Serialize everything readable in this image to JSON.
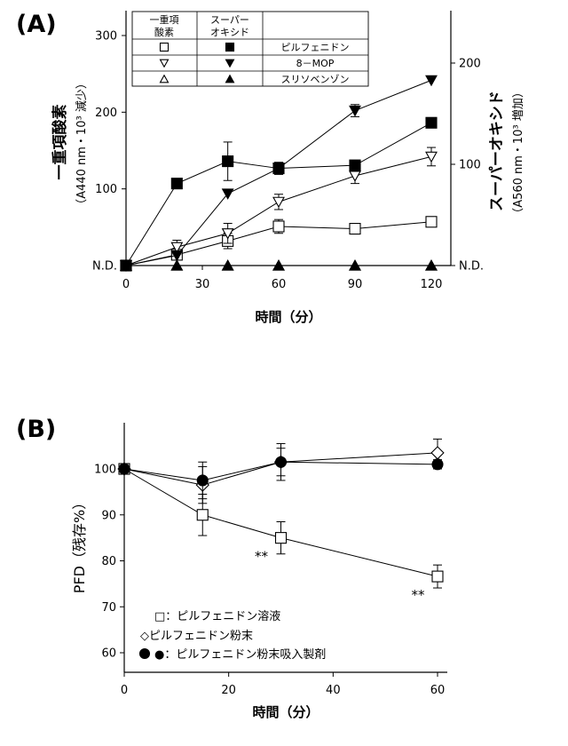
{
  "chart_data": [
    {
      "panel_label": "(A)",
      "type": "line",
      "xlabel": "時間（分）",
      "x_ticks": [
        "0",
        "30",
        "60",
        "90",
        "120"
      ],
      "x_range": [
        0,
        120
      ],
      "ylabel_left": "一重項酸素",
      "ylabel_left_sub": "（A440 nm・10³ 減少）",
      "y_left_ticks": [
        "N.D.",
        "100",
        "200",
        "300"
      ],
      "y_left_range": [
        0,
        300
      ],
      "ylabel_right": "スーパーオキシド",
      "ylabel_right_sub": "（A560 nm・10³ 増加）",
      "y_right_ticks": [
        "N.D.",
        "100",
        "200"
      ],
      "y_right_range": [
        0,
        228
      ],
      "legend": {
        "header": [
          "一重項\n酸素",
          "スーパー\nオキシド",
          ""
        ],
        "rows": [
          {
            "singlet_marker": "open-square",
            "superoxide_marker": "filled-square",
            "label": "ピルフェニドン"
          },
          {
            "singlet_marker": "open-triangle-down",
            "superoxide_marker": "filled-triangle-down",
            "label": "8－MOP"
          },
          {
            "singlet_marker": "open-triangle-up",
            "superoxide_marker": "filled-triangle-up",
            "label": "スリソベンゾン"
          }
        ]
      },
      "series": [
        {
          "axis": "left",
          "marker": "open-square",
          "x": [
            0,
            20,
            40,
            60,
            90,
            120
          ],
          "y": [
            0,
            14,
            32,
            51,
            48,
            57
          ],
          "err": [
            0,
            5,
            10,
            9,
            6,
            6
          ]
        },
        {
          "axis": "left",
          "marker": "open-triangle-down",
          "x": [
            0,
            20,
            40,
            60,
            90,
            120
          ],
          "y": [
            0,
            24,
            42,
            83,
            117,
            142
          ],
          "err": [
            0,
            9,
            13,
            10,
            10,
            12
          ]
        },
        {
          "axis": "left",
          "marker": "open-triangle-up",
          "x": [
            0,
            20,
            40,
            60,
            90,
            120
          ],
          "y": [
            0,
            0,
            0,
            0,
            0,
            0
          ],
          "err": [
            0,
            0,
            0,
            0,
            0,
            0
          ]
        },
        {
          "axis": "right",
          "marker": "filled-square",
          "x": [
            0,
            20,
            40,
            60,
            90,
            120
          ],
          "y": [
            0,
            81,
            103,
            96,
            99,
            141
          ],
          "err": [
            0,
            0,
            19,
            6,
            5,
            5
          ]
        },
        {
          "axis": "right",
          "marker": "filled-triangle-down",
          "x": [
            0,
            20,
            40,
            60,
            90,
            120
          ],
          "y": [
            0,
            10,
            71,
            96,
            153,
            183
          ],
          "err": [
            0,
            0,
            0,
            0,
            6,
            0
          ]
        },
        {
          "axis": "right",
          "marker": "filled-triangle-up",
          "x": [
            0,
            20,
            40,
            60,
            90,
            120
          ],
          "y": [
            0,
            0,
            0,
            0,
            0,
            0
          ],
          "err": [
            0,
            0,
            0,
            0,
            0,
            0
          ]
        }
      ]
    },
    {
      "panel_label": "(B)",
      "type": "line",
      "xlabel": "時間（分）",
      "x_ticks": [
        "0",
        "20",
        "40",
        "60"
      ],
      "x_range": [
        0,
        60
      ],
      "ylabel": "PFD（残存%）",
      "y_ticks": [
        "60",
        "70",
        "80",
        "90",
        "100"
      ],
      "y_range": [
        57,
        110
      ],
      "legend": [
        {
          "marker": "open-square",
          "label": "□：ピルフェニドン溶液"
        },
        {
          "marker": "open-diamond",
          "label": "◇ピルフェニドン粉末"
        },
        {
          "marker": "filled-circle",
          "label": "●：ピルフェニドン粉末吸入製剤"
        }
      ],
      "annotations": [
        {
          "text": "**",
          "x": 30,
          "y": 85
        },
        {
          "text": "**",
          "x": 60,
          "y": 76.6
        }
      ],
      "series": [
        {
          "marker": "open-square",
          "x": [
            0,
            15,
            30,
            60
          ],
          "y": [
            100,
            90,
            85,
            76.6
          ],
          "err": [
            0,
            4.5,
            3.5,
            2.5
          ]
        },
        {
          "marker": "open-diamond",
          "x": [
            0,
            15,
            30,
            60
          ],
          "y": [
            100,
            96.5,
            101.5,
            103.5
          ],
          "err": [
            0,
            4,
            4,
            3
          ]
        },
        {
          "marker": "filled-circle",
          "x": [
            0,
            15,
            30,
            60
          ],
          "y": [
            100,
            97.5,
            101.5,
            101
          ],
          "err": [
            0,
            4,
            3,
            1
          ]
        }
      ]
    }
  ]
}
